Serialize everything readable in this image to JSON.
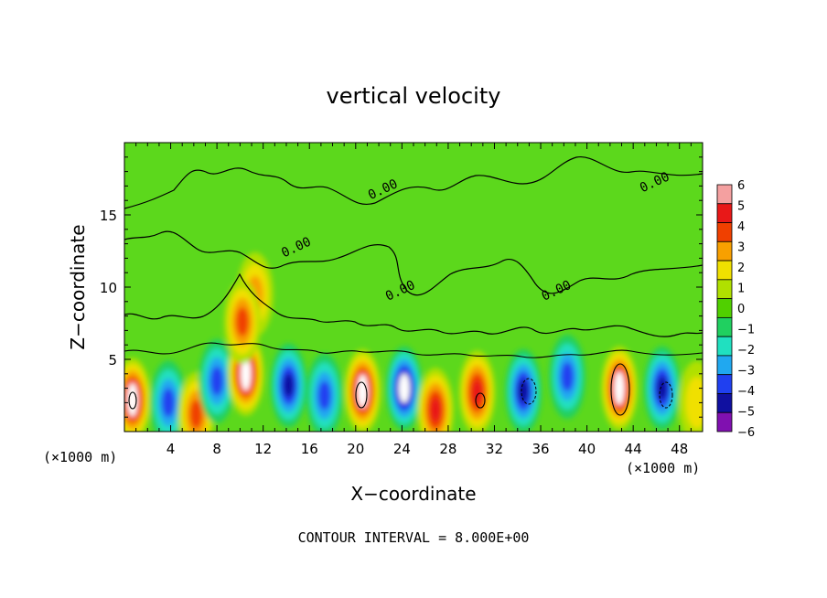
{
  "chart_data": {
    "type": "heatmap",
    "title": "vertical velocity",
    "xlabel": "X−coordinate",
    "ylabel": "Z−coordinate",
    "x_unit_left": "(×1000 m)",
    "x_unit_right": "(×1000 m)",
    "xlim": [
      0,
      50
    ],
    "ylim": [
      0,
      20
    ],
    "x_ticks": [
      4,
      8,
      12,
      16,
      20,
      24,
      28,
      32,
      36,
      40,
      44,
      48
    ],
    "y_ticks": [
      5,
      10,
      15
    ],
    "contour_labels": [
      "0.00",
      "0.00",
      "0.00",
      "0.00",
      "0.00"
    ],
    "contour_label_positions": [
      [
        22.5,
        16.5
      ],
      [
        46.0,
        17.0
      ],
      [
        24.0,
        9.5
      ],
      [
        37.5,
        9.5
      ],
      [
        15.0,
        12.5
      ]
    ],
    "footer": "CONTOUR INTERVAL = 8.000E+00",
    "colorbar": {
      "labels": [
        "6",
        "5",
        "4",
        "3",
        "2",
        "1",
        "0",
        "−1",
        "−2",
        "−3",
        "−4",
        "−5",
        "−6"
      ],
      "colors": [
        "#f4a0a0",
        "#e81818",
        "#f04000",
        "#f8a000",
        "#f0e000",
        "#b0e000",
        "#50d000",
        "#20d060",
        "#20e0c0",
        "#20a8f0",
        "#2040f0",
        "#1010a0",
        "#8010b0"
      ]
    },
    "cells": [
      {
        "x": 0.7,
        "z": 2.2,
        "w": 6,
        "label": true
      },
      {
        "x": 3.8,
        "z": 2.0,
        "w": -4
      },
      {
        "x": 6.2,
        "z": 1.2,
        "w": 4
      },
      {
        "x": 8.0,
        "z": 3.5,
        "w": -4
      },
      {
        "x": 10.5,
        "z": 4.0,
        "w": 6
      },
      {
        "x": 11.3,
        "z": 9.5,
        "w": 3
      },
      {
        "x": 10.2,
        "z": 7.6,
        "w": 4
      },
      {
        "x": 14.2,
        "z": 3.2,
        "w": -5
      },
      {
        "x": 17.3,
        "z": 2.5,
        "w": -4
      },
      {
        "x": 20.6,
        "z": 2.8,
        "w": 6,
        "label": true
      },
      {
        "x": 24.2,
        "z": 3.0,
        "w": -6
      },
      {
        "x": 26.9,
        "z": 1.5,
        "w": 5
      },
      {
        "x": 30.5,
        "z": 2.7,
        "w": 5,
        "label": true
      },
      {
        "x": 34.5,
        "z": 2.8,
        "w": -5
      },
      {
        "x": 38.3,
        "z": 3.8,
        "w": -4
      },
      {
        "x": 42.8,
        "z": 3.0,
        "w": 6,
        "label": true
      },
      {
        "x": 46.5,
        "z": 3.0,
        "w": -5
      },
      {
        "x": 49.5,
        "z": 2.0,
        "w": 2
      }
    ]
  }
}
